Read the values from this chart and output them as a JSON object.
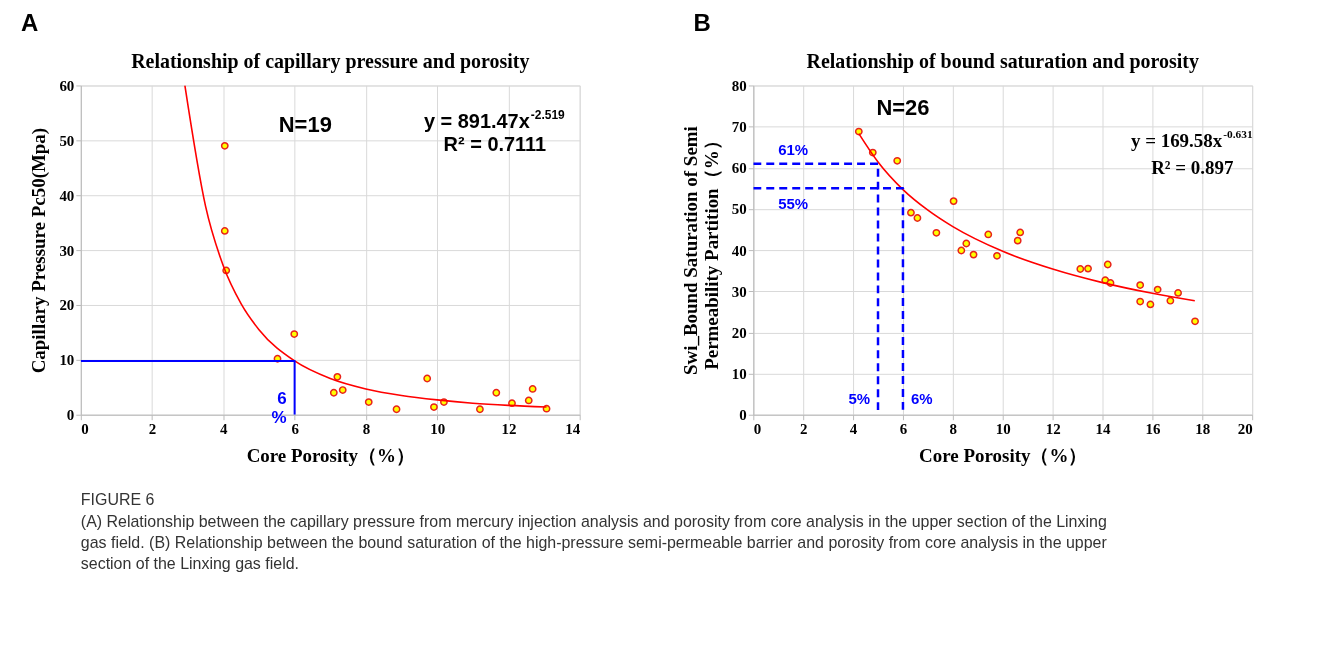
{
  "chart_data": [
    {
      "type": "scatter",
      "title": "Relationship of capillary pressure and porosity",
      "xlabel": "Core Porosity（%）",
      "ylabel": "Capillary Pressure Pc50(Mpa)",
      "xlim": [
        0,
        14
      ],
      "xticks": [
        0,
        2,
        4,
        6,
        8,
        10,
        12,
        14
      ],
      "ylim": [
        0,
        60
      ],
      "yticks": [
        0,
        10,
        20,
        30,
        40,
        50,
        60
      ],
      "grid": true,
      "series": [
        {
          "type": "scatter",
          "marker": "circle",
          "color": "#ffff00",
          "x": [
            4.04,
            4.04,
            4.08,
            5.99,
            5.52,
            7.2,
            7.1,
            7.35,
            8.08,
            8.86,
            9.72,
            9.91,
            10.19,
            11.2,
            11.66,
            12.1,
            12.57,
            12.68,
            13.07
          ],
          "values": [
            49.0,
            33.5,
            26.3,
            14.7,
            10.2,
            6.9,
            4.0,
            4.5,
            2.3,
            1.0,
            6.6,
            1.4,
            2.3,
            1.0,
            4.0,
            2.1,
            2.6,
            4.7,
            1.1
          ]
        },
        {
          "type": "line",
          "color": "#ff0000",
          "x": [
            2.92,
            3.5,
            4,
            4.5,
            5,
            6,
            7,
            8,
            9,
            10,
            11,
            12,
            13.07
          ],
          "values": [
            60.0,
            38.0,
            27.1,
            20.2,
            15.5,
            9.8,
            6.6,
            4.7,
            3.5,
            2.7,
            2.1,
            1.7,
            1.4
          ]
        },
        {
          "type": "line",
          "color": "#0000ff",
          "line_style": "solid",
          "x": [
            0,
            6,
            6
          ],
          "values": [
            9.8,
            9.8,
            0
          ]
        }
      ],
      "annotations": [
        "A",
        "N=19",
        "y = 891.47x$^{-2.519}$",
        "R² = 0.7111",
        {
          "text": "6 %",
          "x": 6,
          "y": 0
        }
      ]
    },
    {
      "type": "scatter",
      "title": "Relationship of bound saturation and porosity",
      "xlabel": "Core Porosity（%）",
      "ylabel": "Swi_Bound Saturation of Semi Permeability Partition（%）",
      "xlim": [
        0,
        20
      ],
      "xticks": [
        0,
        2,
        4,
        6,
        8,
        10,
        12,
        14,
        16,
        18,
        20
      ],
      "ylim": [
        0,
        80
      ],
      "yticks": [
        0,
        10,
        20,
        30,
        40,
        50,
        60,
        70,
        80
      ],
      "grid": true,
      "series": [
        {
          "type": "scatter",
          "marker": "circle",
          "color": "#ffff00",
          "x": [
            4.23,
            4.79,
            5.77,
            8.03,
            6.32,
            6.58,
            7.34,
            9.42,
            10.7,
            10.6,
            8.34,
            8.54,
            8.83,
            9.77,
            13.11,
            13.42,
            14.21,
            14.11,
            14.32,
            15.51,
            15.51,
            15.92,
            16.21,
            16.72,
            17.03,
            17.71
          ],
          "values": [
            68.8,
            63.7,
            61.7,
            51.9,
            49.1,
            47.8,
            44.2,
            43.8,
            44.3,
            42.3,
            39.9,
            41.6,
            38.9,
            38.6,
            35.4,
            35.5,
            36.5,
            32.7,
            32.0,
            31.5,
            27.5,
            26.8,
            30.4,
            27.7,
            29.6,
            22.7
          ]
        },
        {
          "type": "line",
          "color": "#ff0000",
          "x": [
            4.23,
            5,
            6,
            7,
            8,
            10,
            12,
            14,
            16,
            17.7
          ],
          "values": [
            68.3,
            61.4,
            54.7,
            49.7,
            45.7,
            39.7,
            35.4,
            32.1,
            29.5,
            27.7
          ]
        },
        {
          "type": "line",
          "color": "#0000ff",
          "line_style": "dashed",
          "x": [
            0,
            5,
            5
          ],
          "values": [
            61,
            61,
            0
          ]
        },
        {
          "type": "line",
          "color": "#0000ff",
          "line_style": "dashed",
          "x": [
            0,
            6,
            6
          ],
          "values": [
            55,
            55,
            0
          ]
        }
      ],
      "annotations": [
        "B",
        "N=26",
        "y = 169.58x$^{-0.631}$",
        "R² = 0.897",
        {
          "text": "61%",
          "x": 0,
          "y": 61
        },
        {
          "text": "55%",
          "x": 0,
          "y": 55
        },
        {
          "text": "5%",
          "x": 5,
          "y": 0
        },
        {
          "text": "6%",
          "x": 6,
          "y": 0
        }
      ]
    },
    {
      "type": "other",
      "annotations": [
        "FIGURE 6",
        "(A) Relationship between the capillary pressure from mercury injection analysis and porosity from core analysis in the upper section of the Linxing gas field. (B) Relationship between the bound saturation of the high-pressure semi-permeable barrier and porosity from core analysis in the upper section of the Linxing gas field."
      ]
    }
  ]
}
